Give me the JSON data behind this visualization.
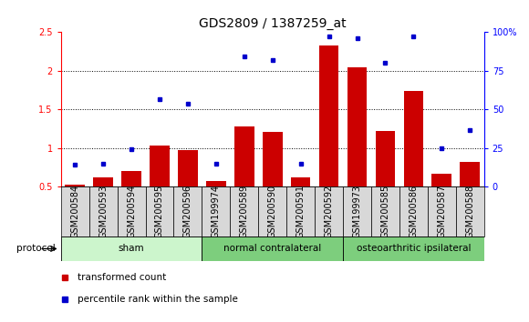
{
  "title": "GDS2809 / 1387259_at",
  "samples": [
    "GSM200584",
    "GSM200593",
    "GSM200594",
    "GSM200595",
    "GSM200596",
    "GSM199974",
    "GSM200589",
    "GSM200590",
    "GSM200591",
    "GSM200592",
    "GSM199973",
    "GSM200585",
    "GSM200586",
    "GSM200587",
    "GSM200588"
  ],
  "red_values": [
    0.53,
    0.62,
    0.7,
    1.03,
    0.97,
    0.58,
    1.28,
    1.21,
    0.62,
    2.33,
    2.05,
    1.22,
    1.74,
    0.67,
    0.82
  ],
  "blue_values": [
    0.79,
    0.8,
    0.99,
    1.63,
    1.57,
    0.8,
    2.19,
    2.14,
    0.8,
    2.44,
    2.42,
    2.11,
    2.44,
    1.0,
    1.23
  ],
  "ylim_left": [
    0.5,
    2.5
  ],
  "yticks_left": [
    0.5,
    1.0,
    1.5,
    2.0,
    2.5
  ],
  "ytick_labels_left": [
    "0.5",
    "1",
    "1.5",
    "2",
    "2.5"
  ],
  "ytick_labels_right": [
    "0",
    "25",
    "50",
    "75",
    "100%"
  ],
  "bar_color": "#cc0000",
  "dot_color": "#0000cc",
  "legend_items": [
    "transformed count",
    "percentile rank within the sample"
  ],
  "protocol_label": "protocol",
  "groups": [
    "sham",
    "normal contralateral",
    "osteoarthritic ipsilateral"
  ],
  "group_starts": [
    0,
    5,
    10
  ],
  "group_ends": [
    4,
    9,
    14
  ],
  "group_colors": [
    "#ccf5cc",
    "#7dce7d",
    "#7dce7d"
  ],
  "tick_box_color": "#d8d8d8",
  "tick_fontsize": 7,
  "title_fontsize": 10
}
